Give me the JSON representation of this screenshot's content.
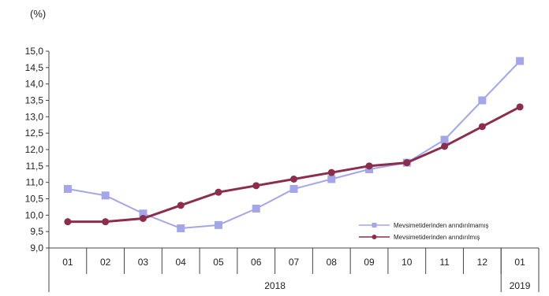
{
  "chart_data": {
    "type": "line",
    "unit_label": "(%)",
    "title": "",
    "xlabel": "",
    "ylabel": "",
    "categories": [
      "01",
      "02",
      "03",
      "04",
      "05",
      "06",
      "07",
      "08",
      "09",
      "10",
      "11",
      "12",
      "01"
    ],
    "x_groups": [
      {
        "label": "2018",
        "from_index": 0,
        "to_index": 11
      },
      {
        "label": "2019",
        "from_index": 12,
        "to_index": 12
      }
    ],
    "ylim": [
      9.0,
      15.0
    ],
    "y_ticks": [
      "9,0",
      "9,5",
      "10,0",
      "10,5",
      "11,0",
      "11,5",
      "12,0",
      "12,5",
      "13,0",
      "13,5",
      "14,0",
      "14,5",
      "15,0"
    ],
    "grid": false,
    "legend_position": "right, lower half",
    "series": [
      {
        "name": "Mevsimetiderinden arındırılmamış",
        "color": "#a3a6e8",
        "marker": "square",
        "values": [
          10.8,
          10.6,
          10.05,
          9.6,
          9.7,
          10.2,
          10.8,
          11.1,
          11.4,
          11.6,
          12.3,
          13.5,
          14.7
        ]
      },
      {
        "name": "Mevsimetiderinden arındırılmış",
        "color": "#8c2d4e",
        "marker": "circle",
        "values": [
          9.8,
          9.8,
          9.9,
          10.3,
          10.7,
          10.9,
          11.1,
          11.3,
          11.5,
          11.6,
          12.1,
          12.7,
          13.3
        ]
      }
    ]
  }
}
